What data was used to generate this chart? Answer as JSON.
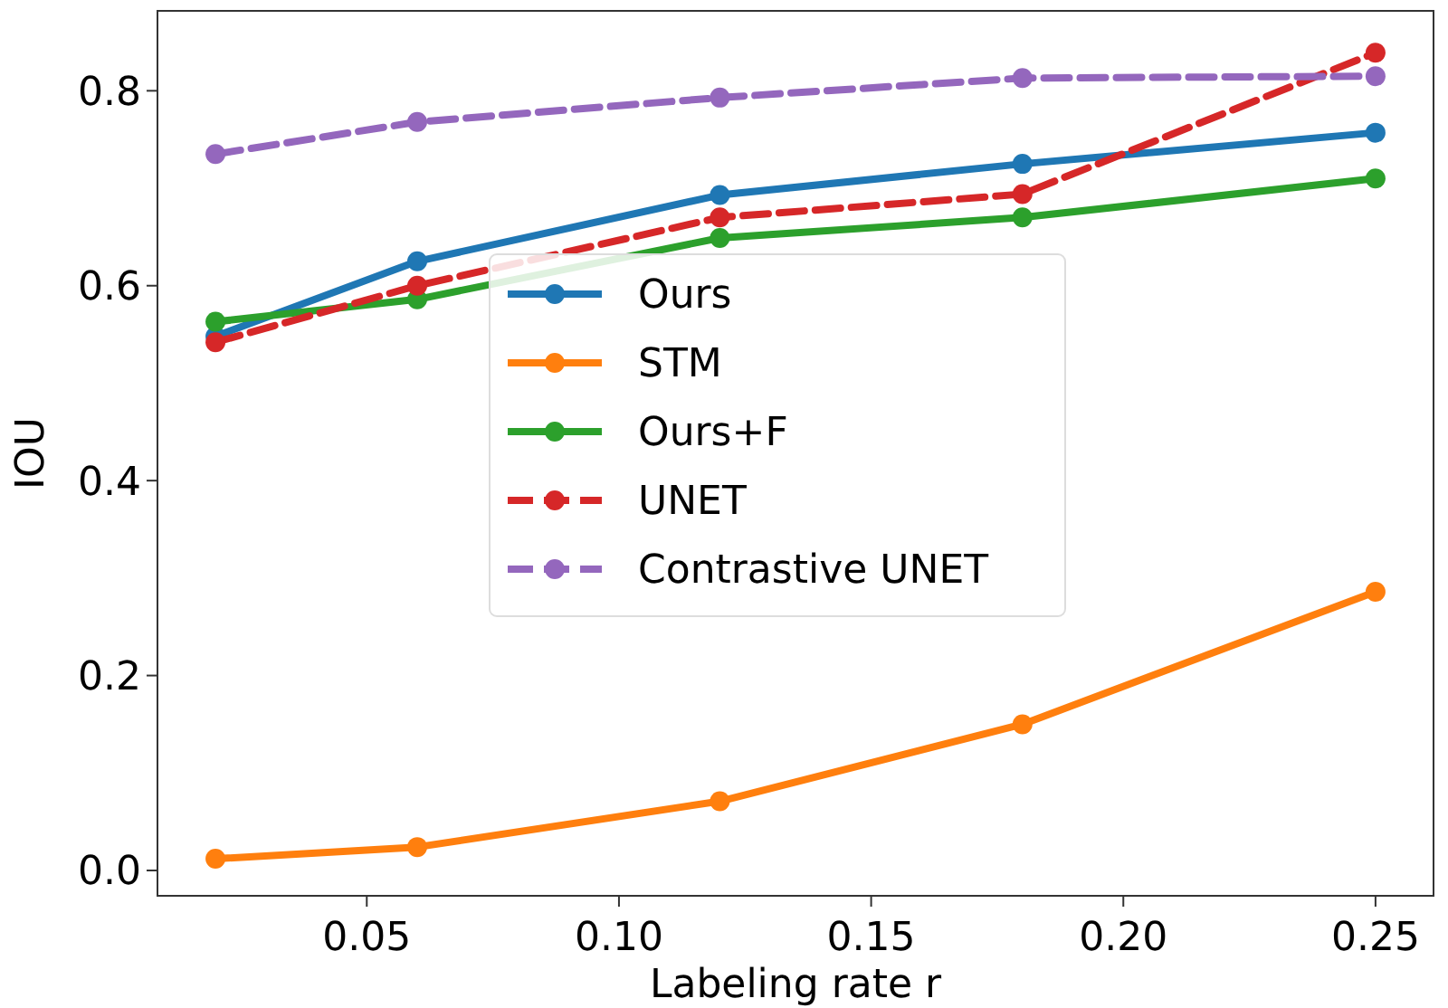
{
  "chart_data": {
    "type": "line",
    "xlabel": "Labeling rate r",
    "ylabel": "IOU",
    "x": [
      0.02,
      0.06,
      0.12,
      0.18,
      0.25
    ],
    "xlim": [
      0.0085,
      0.2615
    ],
    "xticks": [
      {
        "value": 0.05,
        "label": "0.05"
      },
      {
        "value": 0.1,
        "label": "0.10"
      },
      {
        "value": 0.15,
        "label": "0.15"
      },
      {
        "value": 0.2,
        "label": "0.20"
      },
      {
        "value": 0.25,
        "label": "0.25"
      }
    ],
    "ylim": [
      -0.026,
      0.882
    ],
    "yticks": [
      {
        "value": 0,
        "label": "0.0"
      },
      {
        "value": 0.2,
        "label": "0.2"
      },
      {
        "value": 0.4,
        "label": "0.4"
      },
      {
        "value": 0.6,
        "label": "0.6"
      },
      {
        "value": 0.8,
        "label": "0.8"
      }
    ],
    "marker": "circle",
    "legend": "center",
    "grid": false,
    "series": [
      {
        "name": "Ours",
        "color": "#1f77b4",
        "line_style": "solid",
        "values": [
          0.548,
          0.625,
          0.693,
          0.725,
          0.757
        ]
      },
      {
        "name": "STM",
        "color": "#ff7f0e",
        "line_style": "solid",
        "values": [
          0.012,
          0.024,
          0.071,
          0.15,
          0.286
        ]
      },
      {
        "name": "Ours+F",
        "color": "#2ca02c",
        "line_style": "solid",
        "values": [
          0.563,
          0.586,
          0.649,
          0.67,
          0.71
        ]
      },
      {
        "name": "UNET",
        "color": "#d62728",
        "line_style": "dashed",
        "values": [
          0.542,
          0.6,
          0.67,
          0.694,
          0.839
        ]
      },
      {
        "name": "Contrastive UNET",
        "color": "#9467bd",
        "line_style": "dashed",
        "values": [
          0.735,
          0.768,
          0.793,
          0.813,
          0.815
        ]
      }
    ]
  }
}
